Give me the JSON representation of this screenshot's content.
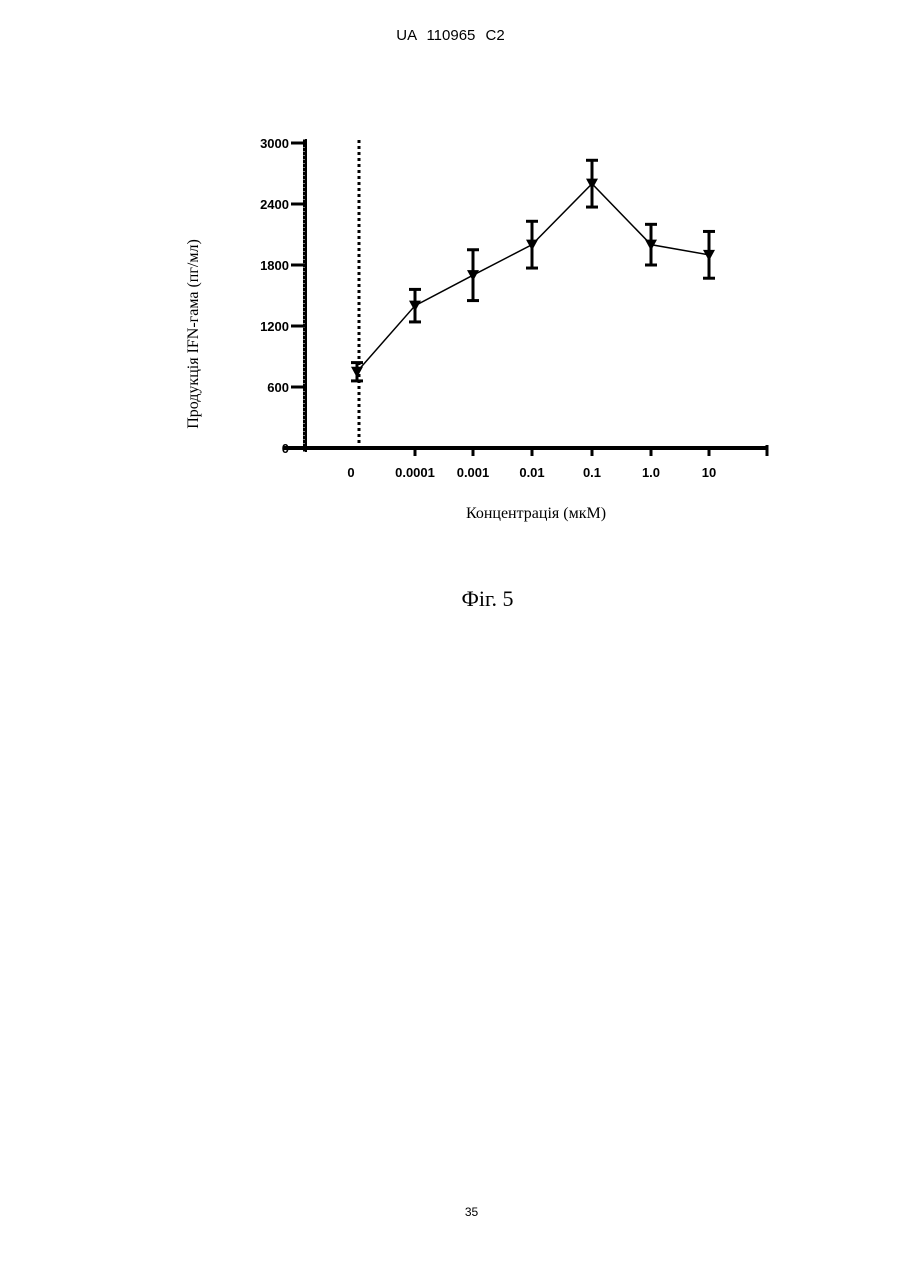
{
  "document": {
    "header": "UA 110965 C2",
    "figure_caption": "Фіг. 5",
    "page_number": "35"
  },
  "chart_data": {
    "type": "line",
    "xlabel": "Концентрація (мкМ)",
    "ylabel": "Продукція IFN-гама (пг/мл)",
    "ylim": [
      0,
      3000
    ],
    "yticks": [
      "0",
      "600",
      "1200",
      "1800",
      "2400",
      "3000"
    ],
    "categories": [
      "0",
      "0.0001",
      "0.001",
      "0.01",
      "0.1",
      "1.0",
      "10"
    ],
    "series": [
      {
        "values": [
          750,
          1400,
          1700,
          2000,
          2600,
          2000,
          1900
        ],
        "errors": [
          90,
          160,
          250,
          230,
          230,
          200,
          230
        ]
      }
    ],
    "x_axis_break_after": "0",
    "grid": false,
    "marker": "triangle-down",
    "color": "#000000"
  }
}
